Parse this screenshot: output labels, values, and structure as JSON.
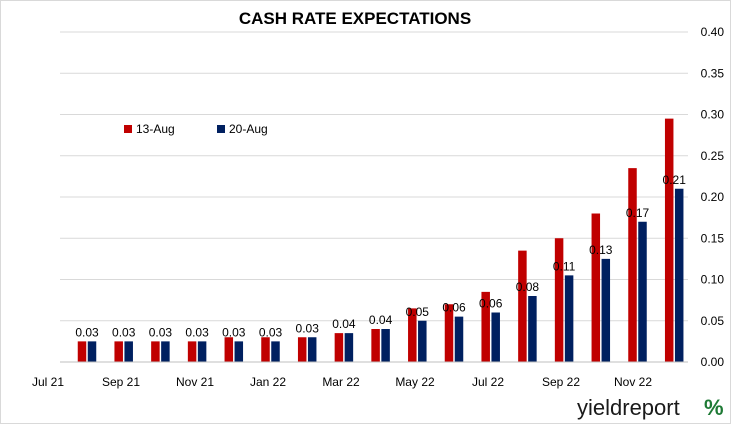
{
  "chart_data": {
    "type": "bar",
    "title": "CASH RATE EXPECTATIONS",
    "xlabel": "",
    "ylabel": "",
    "ylim": [
      0,
      0.4
    ],
    "y_ticks": [
      "0.00",
      "0.05",
      "0.10",
      "0.15",
      "0.20",
      "0.25",
      "0.30",
      "0.35",
      "0.40"
    ],
    "y_axis_side": "right",
    "grid": true,
    "legend_position": "upper-left",
    "x_tick_labels": [
      "Jul 21",
      "Sep 21",
      "Nov 21",
      "Jan 22",
      "Mar 22",
      "May 22",
      "Jul 22",
      "Sep 22",
      "Nov 22"
    ],
    "categories": [
      "Aug 21",
      "Sep 21",
      "Oct 21",
      "Nov 21",
      "Dec 21",
      "Jan 22",
      "Feb 22",
      "Mar 22",
      "Apr 22",
      "May 22",
      "Jun 22",
      "Jul 22",
      "Aug 22",
      "Sep 22",
      "Oct 22",
      "Nov 22",
      "Dec 22"
    ],
    "series": [
      {
        "name": "13-Aug",
        "color": "#c00000",
        "values": [
          0.025,
          0.025,
          0.025,
          0.025,
          0.03,
          0.03,
          0.03,
          0.035,
          0.04,
          0.065,
          0.07,
          0.085,
          0.135,
          0.15,
          0.18,
          0.235,
          0.295
        ]
      },
      {
        "name": "20-Aug",
        "color": "#002060",
        "values": [
          0.025,
          0.025,
          0.025,
          0.025,
          0.025,
          0.025,
          0.03,
          0.035,
          0.04,
          0.05,
          0.055,
          0.06,
          0.08,
          0.105,
          0.125,
          0.17,
          0.21
        ],
        "data_labels": [
          "0.03",
          "0.03",
          "0.03",
          "0.03",
          "0.03",
          "0.03",
          "0.03",
          "0.04",
          "0.04",
          "0.05",
          "0.06",
          "0.06",
          "0.08",
          "0.11",
          "0.13",
          "0.17",
          "0.21"
        ]
      }
    ]
  },
  "branding": {
    "logo_text": "yieldreport",
    "logo_symbol": "%"
  }
}
